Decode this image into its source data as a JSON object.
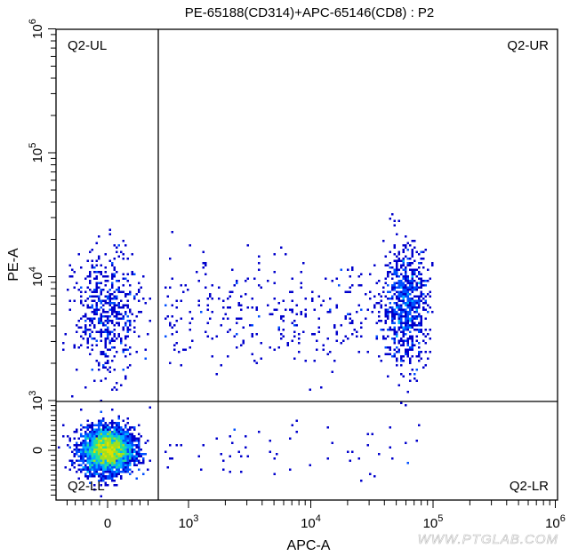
{
  "chart_data": {
    "type": "scatter",
    "title": "PE-65188(CD314)+APC-65146(CD8) : P2",
    "xlabel": "APC-A",
    "ylabel": "PE-A",
    "x_scale": "biexponential",
    "y_scale": "biexponential",
    "xlim": [
      -600,
      1000000
    ],
    "ylim": [
      -1000,
      1000000
    ],
    "x_ticks": [
      {
        "value": 0,
        "base": "0",
        "exp": ""
      },
      {
        "value": 1000,
        "base": "10",
        "exp": "3"
      },
      {
        "value": 10000,
        "base": "10",
        "exp": "4"
      },
      {
        "value": 100000,
        "base": "10",
        "exp": "5"
      },
      {
        "value": 1000000,
        "base": "10",
        "exp": "6"
      }
    ],
    "y_ticks": [
      {
        "value": 0,
        "base": "0",
        "exp": ""
      },
      {
        "value": 1000,
        "base": "10",
        "exp": "3"
      },
      {
        "value": 10000,
        "base": "10",
        "exp": "4"
      },
      {
        "value": 100000,
        "base": "10",
        "exp": "5"
      },
      {
        "value": 1000000,
        "base": "10",
        "exp": "6"
      }
    ],
    "gates": {
      "x_threshold": 600,
      "y_threshold": 1000
    },
    "quadrants": {
      "ul": "Q2-UL",
      "ur": "Q2-UR",
      "ll": "Q2-LL",
      "lr": "Q2-LR"
    },
    "populations": [
      {
        "quadrant": "Q2-LL",
        "count": 3200,
        "x_center": 0,
        "y_center": 0,
        "x_sd": 160,
        "y_sd": 230
      },
      {
        "quadrant": "Q2-UL",
        "count": 520,
        "x_center": 0,
        "y_center": 5000,
        "x_sd": 200,
        "y_log_sd": 0.25
      },
      {
        "quadrant": "Q2-UR",
        "count": 750,
        "x_center": 60000,
        "y_center": 6000,
        "x_log_sd": 0.09,
        "y_log_sd": 0.24
      },
      {
        "quadrant": "Q2-UR",
        "count": 330,
        "x_range": [
          700,
          45000
        ],
        "y_center": 5000,
        "y_log_sd": 0.22
      },
      {
        "quadrant": "Q2-LR",
        "count": 60,
        "x_range": [
          700,
          80000
        ],
        "y_center": 0,
        "y_sd": 250
      }
    ],
    "density_colors": [
      "#0000cc",
      "#0050ff",
      "#00b0ff",
      "#20e0a0",
      "#a0e020",
      "#e0e000"
    ],
    "grid": false,
    "legend": "none"
  },
  "watermark": "WWW.PTGLAB.COM"
}
